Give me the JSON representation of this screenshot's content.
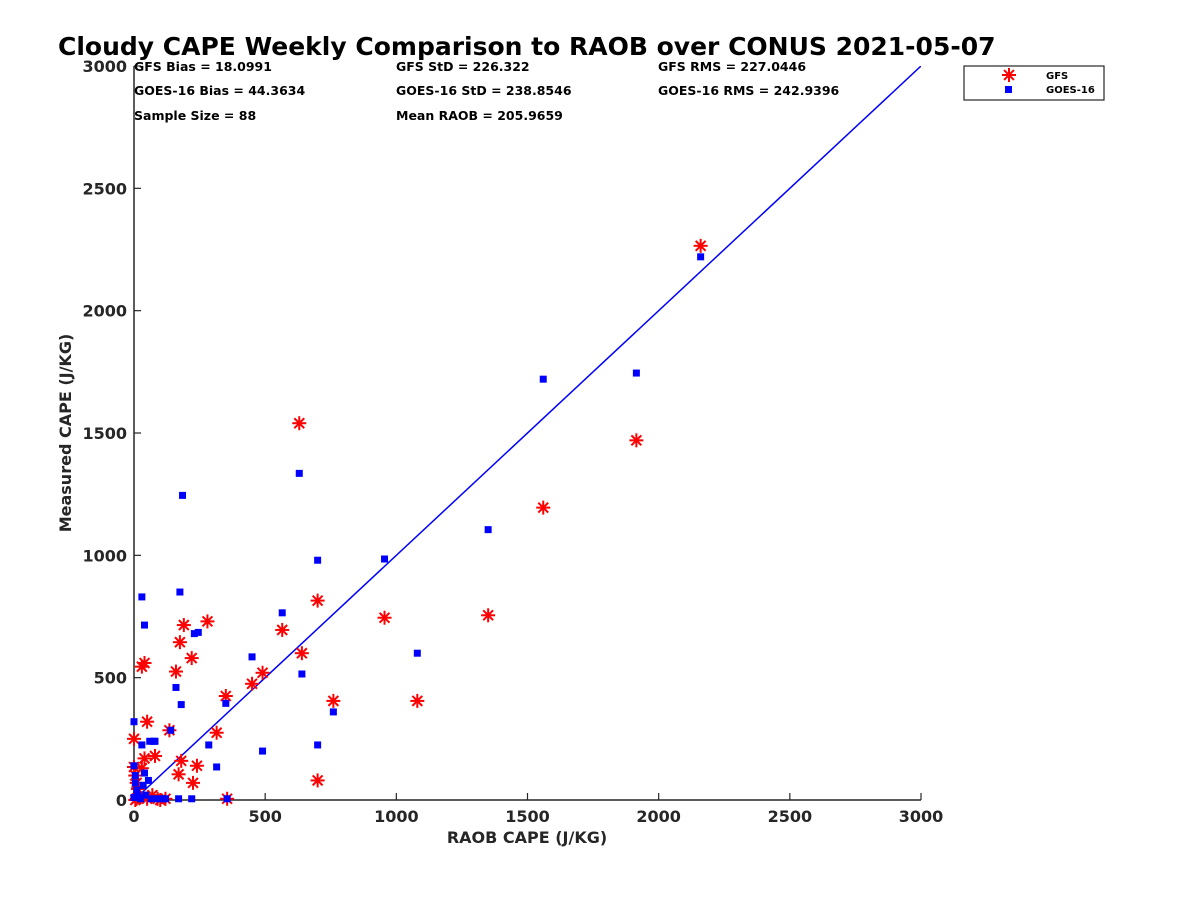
{
  "chart_data": {
    "type": "scatter",
    "title": "Cloudy CAPE Weekly Comparison to RAOB over CONUS 2021-05-07",
    "xlabel": "RAOB CAPE (J/KG)",
    "ylabel": "Measured CAPE (J/KG)",
    "xlim": [
      0,
      3000
    ],
    "ylim": [
      0,
      3000
    ],
    "xticks": [
      "0",
      "500",
      "1000",
      "1500",
      "2000",
      "2500",
      "3000"
    ],
    "yticks": [
      "0",
      "500",
      "1000",
      "1500",
      "2000",
      "2500",
      "3000"
    ],
    "grid": false,
    "legend_position": "outside-top-right",
    "stats": [
      "GFS Bias = 18.0991",
      "GFS StD = 226.322",
      "GFS RMS = 227.0446",
      "GOES-16 Bias = 44.3634",
      "GOES-16 StD = 238.8546",
      "GOES-16 RMS = 242.9396",
      "Sample Size = 88",
      "Mean RAOB = 205.9659"
    ],
    "one_to_one_line": {
      "x": [
        0,
        3000
      ],
      "y": [
        0,
        3000
      ],
      "color": "#0000ff"
    },
    "series": [
      {
        "name": "GFS",
        "marker": "asterisk",
        "color": "#ff0000",
        "x": [
          2160,
          1915,
          1560,
          1350,
          1080,
          955,
          760,
          700,
          700,
          640,
          630,
          565,
          490,
          450,
          350,
          355,
          315,
          280,
          240,
          225,
          220,
          190,
          180,
          175,
          170,
          160,
          135,
          80,
          50,
          40,
          30,
          0,
          0,
          5,
          10,
          15,
          20,
          10,
          5,
          30,
          40,
          50,
          70,
          90,
          100,
          120
        ],
        "y": [
          2265,
          1470,
          1195,
          755,
          405,
          745,
          405,
          815,
          80,
          600,
          1540,
          695,
          520,
          475,
          425,
          5,
          275,
          730,
          140,
          70,
          580,
          715,
          160,
          645,
          105,
          525,
          285,
          180,
          320,
          560,
          545,
          250,
          135,
          100,
          70,
          45,
          10,
          5,
          0,
          130,
          170,
          5,
          20,
          5,
          0,
          5
        ]
      },
      {
        "name": "GOES-16",
        "marker": "square",
        "color": "#0000ff",
        "x": [
          2160,
          1915,
          1560,
          1350,
          1080,
          955,
          760,
          700,
          700,
          640,
          630,
          565,
          490,
          450,
          350,
          355,
          315,
          285,
          245,
          230,
          220,
          185,
          180,
          175,
          160,
          140,
          80,
          60,
          40,
          30,
          30,
          40,
          0,
          0,
          5,
          10,
          15,
          20,
          25,
          35,
          45,
          55,
          65,
          75,
          90,
          110,
          120,
          170,
          0,
          5
        ],
        "y": [
          2220,
          1745,
          1720,
          1105,
          600,
          985,
          360,
          980,
          225,
          515,
          1335,
          765,
          200,
          585,
          395,
          5,
          135,
          225,
          685,
          680,
          5,
          1245,
          390,
          850,
          460,
          285,
          240,
          240,
          715,
          830,
          225,
          110,
          320,
          140,
          70,
          40,
          20,
          10,
          5,
          60,
          20,
          80,
          5,
          240,
          5,
          5,
          5,
          5,
          10,
          100
        ]
      }
    ]
  }
}
